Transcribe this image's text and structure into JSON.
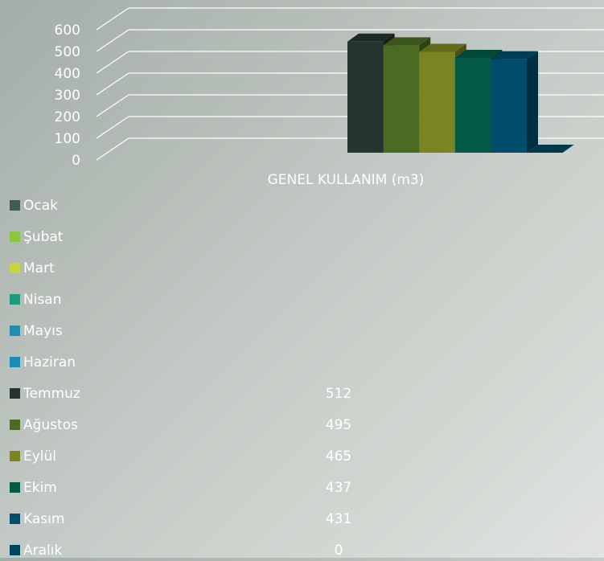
{
  "chart_data": {
    "type": "bar3d",
    "categories": [
      "GENEL KULLANIM (m3)"
    ],
    "ylim": [
      0,
      600
    ],
    "yticks": [
      0,
      100,
      200,
      300,
      400,
      500,
      600
    ],
    "grid": true,
    "series": [
      {
        "name": "Ocak",
        "color": "#3f5c57",
        "values": [
          null
        ]
      },
      {
        "name": "Şubat",
        "color": "#8cc63f",
        "values": [
          null
        ]
      },
      {
        "name": "Mart",
        "color": "#c9d53c",
        "values": [
          null
        ]
      },
      {
        "name": "Nisan",
        "color": "#1a9b7c",
        "values": [
          null
        ]
      },
      {
        "name": "Mayıs",
        "color": "#1e8fb3",
        "values": [
          null
        ]
      },
      {
        "name": "Haziran",
        "color": "#1b8bb8",
        "values": [
          null
        ]
      },
      {
        "name": "Temmuz",
        "color": "#263430",
        "values": [
          512
        ]
      },
      {
        "name": "Ağustos",
        "color": "#4b6b22",
        "values": [
          495
        ]
      },
      {
        "name": "Eylül",
        "color": "#7a8423",
        "values": [
          465
        ]
      },
      {
        "name": "Ekim",
        "color": "#005a45",
        "values": [
          437
        ]
      },
      {
        "name": "Kasım",
        "color": "#004e6c",
        "values": [
          431
        ]
      },
      {
        "name": "Aralık",
        "color": "#00485f",
        "values": [
          0
        ]
      }
    ]
  }
}
